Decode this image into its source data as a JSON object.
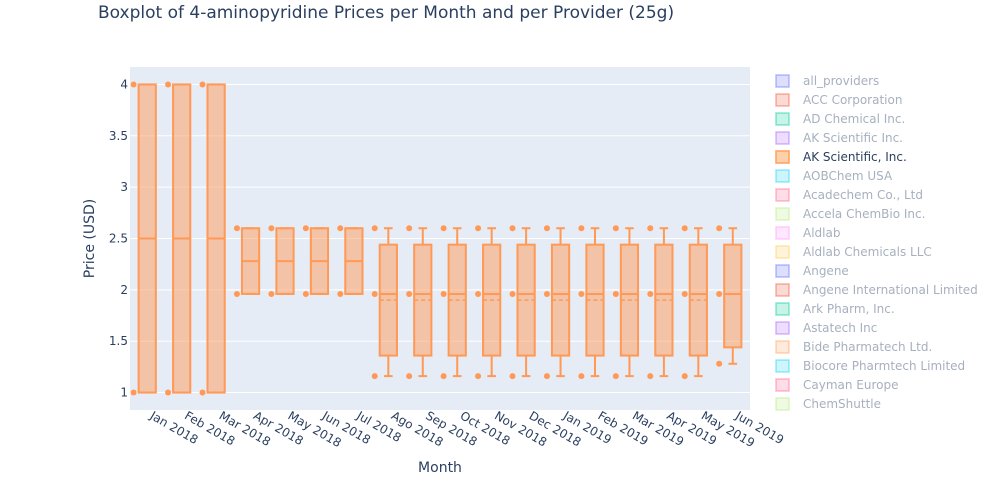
{
  "chart_data": {
    "type": "box",
    "title": "Boxplot of 4-aminopyridine Prices per Month and per Provider (25g)",
    "xlabel": "Month",
    "ylabel": "Price (USD)",
    "ylim": [
      0.83,
      4.17
    ],
    "yticks": [
      1,
      1.5,
      2,
      2.5,
      3,
      3.5,
      4
    ],
    "ytick_labels": [
      "1",
      "1.5",
      "2",
      "2.5",
      "3",
      "3.5",
      "4"
    ],
    "grid": true,
    "legend_position": "right",
    "background": "#e5ecf6",
    "box_color": "#ff9955",
    "categories": [
      "Jan 2018",
      "Feb 2018",
      "Mar 2018",
      "Apr 2018",
      "May 2018",
      "Jun 2018",
      "Jul 2018",
      "Ago 2018",
      "Sep 2018",
      "Oct 2018",
      "Nov 2018",
      "Dec 2018",
      "Jan 2019",
      "Feb 2019",
      "Mar 2019",
      "Apr 2019",
      "May 2019",
      "Jun 2019"
    ],
    "series": [
      {
        "name": "AK Scientific, Inc.",
        "boxes": [
          {
            "q1": 1.0,
            "median": 2.5,
            "q3": 4.0,
            "lower": 1.0,
            "upper": 4.0,
            "mean": 2.5,
            "points": [
              4.0,
              1.0
            ]
          },
          {
            "q1": 1.0,
            "median": 2.5,
            "q3": 4.0,
            "lower": 1.0,
            "upper": 4.0,
            "mean": 2.5,
            "points": [
              4.0,
              1.0
            ]
          },
          {
            "q1": 1.0,
            "median": 2.5,
            "q3": 4.0,
            "lower": 1.0,
            "upper": 4.0,
            "mean": 2.5,
            "points": [
              4.0,
              1.0
            ]
          },
          {
            "q1": 1.96,
            "median": 2.28,
            "q3": 2.6,
            "lower": 1.96,
            "upper": 2.6,
            "mean": 2.28,
            "points": [
              2.6,
              1.96
            ]
          },
          {
            "q1": 1.96,
            "median": 2.28,
            "q3": 2.6,
            "lower": 1.96,
            "upper": 2.6,
            "mean": 2.28,
            "points": [
              2.6,
              1.96
            ]
          },
          {
            "q1": 1.96,
            "median": 2.28,
            "q3": 2.6,
            "lower": 1.96,
            "upper": 2.6,
            "mean": 2.28,
            "points": [
              2.6,
              1.96
            ]
          },
          {
            "q1": 1.96,
            "median": 2.28,
            "q3": 2.6,
            "lower": 1.96,
            "upper": 2.6,
            "mean": 2.28,
            "points": [
              2.6,
              1.96
            ]
          },
          {
            "q1": 1.36,
            "median": 1.96,
            "q3": 2.44,
            "lower": 1.16,
            "upper": 2.6,
            "mean": 1.9,
            "points": [
              2.6,
              1.96,
              1.16
            ]
          },
          {
            "q1": 1.36,
            "median": 1.96,
            "q3": 2.44,
            "lower": 1.16,
            "upper": 2.6,
            "mean": 1.9,
            "points": [
              2.6,
              1.96,
              1.16
            ]
          },
          {
            "q1": 1.36,
            "median": 1.96,
            "q3": 2.44,
            "lower": 1.16,
            "upper": 2.6,
            "mean": 1.9,
            "points": [
              2.6,
              1.96,
              1.16
            ]
          },
          {
            "q1": 1.36,
            "median": 1.96,
            "q3": 2.44,
            "lower": 1.16,
            "upper": 2.6,
            "mean": 1.9,
            "points": [
              2.6,
              1.96,
              1.16
            ]
          },
          {
            "q1": 1.36,
            "median": 1.96,
            "q3": 2.44,
            "lower": 1.16,
            "upper": 2.6,
            "mean": 1.9,
            "points": [
              2.6,
              1.96,
              1.16
            ]
          },
          {
            "q1": 1.36,
            "median": 1.96,
            "q3": 2.44,
            "lower": 1.16,
            "upper": 2.6,
            "mean": 1.9,
            "points": [
              2.6,
              1.96,
              1.16
            ]
          },
          {
            "q1": 1.36,
            "median": 1.96,
            "q3": 2.44,
            "lower": 1.16,
            "upper": 2.6,
            "mean": 1.9,
            "points": [
              2.6,
              1.96,
              1.16
            ]
          },
          {
            "q1": 1.36,
            "median": 1.96,
            "q3": 2.44,
            "lower": 1.16,
            "upper": 2.6,
            "mean": 1.9,
            "points": [
              2.6,
              1.96,
              1.16
            ]
          },
          {
            "q1": 1.36,
            "median": 1.96,
            "q3": 2.44,
            "lower": 1.16,
            "upper": 2.6,
            "mean": 1.9,
            "points": [
              2.6,
              1.96,
              1.16
            ]
          },
          {
            "q1": 1.36,
            "median": 1.96,
            "q3": 2.44,
            "lower": 1.16,
            "upper": 2.6,
            "mean": 1.9,
            "points": [
              2.6,
              1.96,
              1.16
            ]
          },
          {
            "q1": 1.44,
            "median": 1.96,
            "q3": 2.44,
            "lower": 1.28,
            "upper": 2.6,
            "mean": 1.96,
            "points": [
              2.6,
              1.96,
              1.28
            ]
          }
        ]
      }
    ],
    "legend": [
      {
        "label": "all_providers",
        "color": "#636efa",
        "active": false
      },
      {
        "label": "ACC Corporation",
        "color": "#ef553b",
        "active": false
      },
      {
        "label": "AD Chemical Inc.",
        "color": "#00cc96",
        "active": false
      },
      {
        "label": "AK Scientific Inc.",
        "color": "#ab63fa",
        "active": false
      },
      {
        "label": "AK Scientific, Inc.",
        "color": "#ffa15a",
        "active": true
      },
      {
        "label": "AOBChem USA",
        "color": "#19d3f3",
        "active": false
      },
      {
        "label": "Acadechem Co., Ltd",
        "color": "#ff6692",
        "active": false
      },
      {
        "label": "Accela ChemBio Inc.",
        "color": "#b6e880",
        "active": false
      },
      {
        "label": "Aldlab",
        "color": "#ff97ff",
        "active": false
      },
      {
        "label": "Aldlab Chemicals LLC",
        "color": "#fecb52",
        "active": false
      },
      {
        "label": "Angene",
        "color": "#636efa",
        "active": false
      },
      {
        "label": "Angene International Limited",
        "color": "#ef553b",
        "active": false
      },
      {
        "label": "Ark Pharm, Inc.",
        "color": "#00cc96",
        "active": false
      },
      {
        "label": "Astatech Inc",
        "color": "#ab63fa",
        "active": false
      },
      {
        "label": "Bide Pharmatech Ltd.",
        "color": "#ffa15a",
        "active": false
      },
      {
        "label": "Biocore Pharmtech Limited",
        "color": "#19d3f3",
        "active": false
      },
      {
        "label": "Cayman Europe",
        "color": "#ff6692",
        "active": false
      },
      {
        "label": "ChemShuttle",
        "color": "#b6e880",
        "active": false
      }
    ]
  }
}
